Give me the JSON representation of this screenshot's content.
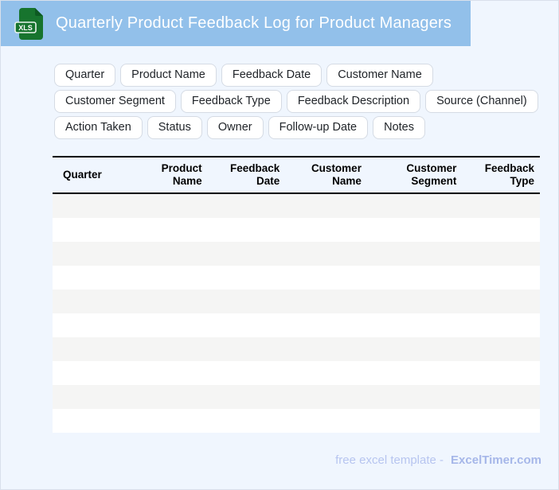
{
  "header": {
    "title": "Quarterly Product Feedback Log for Product Managers",
    "file_badge": "XLS"
  },
  "chips": [
    "Quarter",
    "Product Name",
    "Feedback Date",
    "Customer Name",
    "Customer Segment",
    "Feedback Type",
    "Feedback Description",
    "Source (Channel)",
    "Action Taken",
    "Status",
    "Owner",
    "Follow-up Date",
    "Notes"
  ],
  "table": {
    "columns": [
      "Quarter",
      "Product\nName",
      "Feedback\nDate",
      "Customer\nName",
      "Customer\nSegment",
      "Feedback\nType"
    ],
    "empty_row_count": 10
  },
  "footer": {
    "tagline": "free excel template -",
    "brand": "ExcelTimer.com"
  },
  "colors": {
    "header_bg": "#92c0ea",
    "page_bg": "#f0f6fe",
    "page_border": "#d9e0eb",
    "icon_green": "#17742e",
    "icon_fold": "#0d5a22",
    "chip_border": "#d5dbe4",
    "table_border": "#000000",
    "row_stripe": "#f5f5f4",
    "footer_text": "#b7c5f0",
    "footer_brand": "#a6b7e9"
  }
}
